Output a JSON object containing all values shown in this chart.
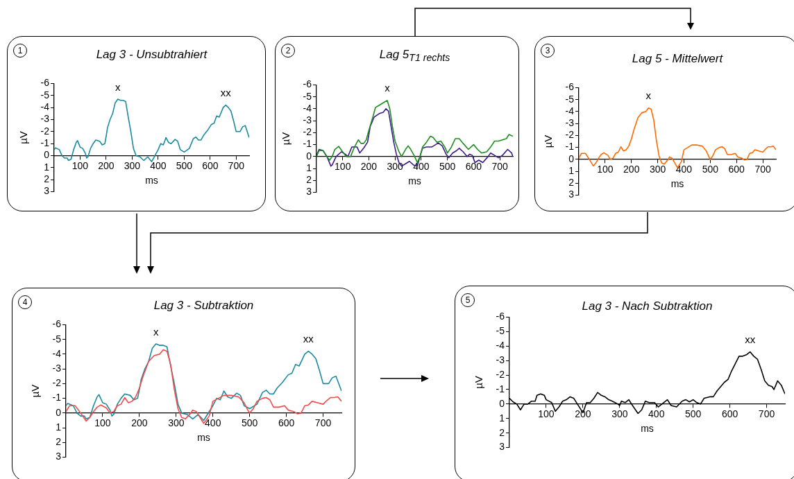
{
  "chart_data": [
    {
      "type": "line",
      "title": "Lag 3 - Unsubtrahiert",
      "xlabel": "ms",
      "ylabel": "µV",
      "xlim": [
        0,
        750
      ],
      "xticks": [
        100,
        200,
        300,
        400,
        500,
        600,
        700
      ],
      "ylim": [
        3,
        -6
      ],
      "yticks": [
        -6,
        -5,
        -4,
        -3,
        -2,
        -1,
        0,
        1,
        2,
        3
      ],
      "annotations": [
        "1",
        {
          "text": "x",
          "x": 245,
          "y": -4.7
        },
        {
          "text": "xx",
          "x": 660,
          "y": -4.2
        }
      ],
      "series": [
        {
          "color": "#1a8a9e",
          "x": [
            0,
            5,
            20,
            30,
            40,
            50,
            55,
            65,
            75,
            85,
            90,
            100,
            110,
            120,
            125,
            130,
            140,
            150,
            160,
            175,
            185,
            195,
            200,
            205,
            215,
            225,
            235,
            245,
            255,
            265,
            275,
            285,
            295,
            305,
            315,
            330,
            345,
            360,
            375,
            385,
            400,
            410,
            420,
            430,
            440,
            450,
            465,
            475,
            485,
            500,
            520,
            535,
            545,
            555,
            565,
            575,
            590,
            605,
            615,
            625,
            635,
            650,
            660,
            670,
            680,
            690,
            700,
            715,
            725,
            735,
            750
          ],
          "values": [
            -0.5,
            -0.65,
            -0.5,
            0,
            0.2,
            0.2,
            0.4,
            0.3,
            -0.5,
            -1.1,
            -1.25,
            -0.7,
            -0.6,
            -0.2,
            0.2,
            0.1,
            -0.6,
            -1.0,
            -1.3,
            -1.2,
            -0.9,
            -1.0,
            -1.6,
            -2.3,
            -3.0,
            -3.5,
            -4.4,
            -4.7,
            -4.6,
            -4.6,
            -4.5,
            -3.2,
            -2.0,
            -0.6,
            0,
            0.1,
            0.4,
            0.1,
            0.5,
            0.1,
            -0.5,
            -1.0,
            -0.9,
            -1.5,
            -1.1,
            -1.0,
            -1.35,
            -1.2,
            -0.5,
            -0.3,
            -0.6,
            -1.4,
            -1.55,
            -1.3,
            -1.3,
            -1.7,
            -2.1,
            -2.6,
            -2.7,
            -3.3,
            -3.2,
            -4.0,
            -4.2,
            -4.0,
            -3.7,
            -2.9,
            -2.0,
            -2.0,
            -2.4,
            -2.5,
            -1.5
          ]
        }
      ]
    },
    {
      "type": "line",
      "title": "Lag 5$_{T1 rechts}$",
      "xlabel": "ms",
      "ylabel": "µV",
      "xlim": [
        0,
        750
      ],
      "xticks": [
        100,
        200,
        300,
        400,
        500,
        600,
        700
      ],
      "ylim": [
        3,
        -6
      ],
      "yticks": [
        -6,
        -5,
        -4,
        -3,
        -2,
        -1,
        0,
        1,
        2,
        3
      ],
      "annotations": [
        "2",
        {
          "text": "x",
          "x": 270,
          "y": -4.7
        }
      ],
      "series": [
        {
          "color": "#1e8c1e",
          "x": [
            0,
            10,
            25,
            40,
            50,
            60,
            70,
            85,
            100,
            110,
            115,
            130,
            145,
            160,
            170,
            180,
            190,
            200,
            215,
            225,
            240,
            255,
            270,
            280,
            290,
            300,
            315,
            325,
            340,
            350,
            360,
            375,
            385,
            395,
            405,
            420,
            435,
            445,
            460,
            475,
            490,
            500,
            515,
            530,
            545,
            560,
            580,
            600,
            615,
            630,
            650,
            665,
            680,
            695,
            710,
            725,
            735,
            750
          ],
          "values": [
            0,
            -0.5,
            -0.5,
            0,
            0.3,
            0,
            -0.6,
            -0.85,
            -0.4,
            -0.1,
            0,
            0,
            -0.8,
            -1.4,
            -1.1,
            -1.1,
            -1.4,
            -2.2,
            -3.3,
            -4.1,
            -4.3,
            -4.5,
            -4.7,
            -4.0,
            -2.5,
            -1.3,
            -0.4,
            0,
            -0.6,
            -0.9,
            -0.6,
            0,
            0.5,
            0,
            -0.8,
            -1.2,
            -1.7,
            -1.6,
            -1.2,
            -1.3,
            -0.8,
            -0.3,
            -0.8,
            -1.5,
            -1.5,
            -1.1,
            -0.6,
            -1.0,
            -0.6,
            -0.3,
            -0.4,
            -0.8,
            -1.3,
            -1.3,
            -1.4,
            -1.5,
            -1.85,
            -1.7
          ]
        },
        {
          "color": "#3a1a8c",
          "x": [
            0,
            10,
            25,
            40,
            55,
            60,
            75,
            95,
            110,
            120,
            135,
            155,
            165,
            180,
            195,
            205,
            220,
            240,
            255,
            265,
            275,
            285,
            295,
            305,
            315,
            325,
            340,
            355,
            370,
            385,
            395,
            405,
            420,
            440,
            455,
            465,
            480,
            495,
            505,
            520,
            535,
            545,
            560,
            575,
            585,
            595,
            605,
            620,
            635,
            655,
            665,
            680,
            695,
            710,
            730,
            745,
            750
          ],
          "values": [
            -0.1,
            -0.6,
            -0.5,
            0,
            0.8,
            0.7,
            0,
            -0.4,
            -0.2,
            0,
            -0.8,
            -0.8,
            -0.3,
            -0.7,
            -1.2,
            -2.5,
            -3.3,
            -3.6,
            -3.7,
            -4.0,
            -3.8,
            -2.5,
            -1.2,
            -0.2,
            0.5,
            0.8,
            0.6,
            0.4,
            0.7,
            0.8,
            0,
            -0.7,
            -0.8,
            -0.8,
            -1.0,
            -1.15,
            -0.9,
            -0.2,
            0.1,
            -0.3,
            -0.5,
            -0.7,
            -0.4,
            0,
            -0.2,
            -0.1,
            0.5,
            0.3,
            0.5,
            0,
            -0.3,
            -0.1,
            0.1,
            -0.1,
            -0.6,
            -0.3,
            0
          ]
        }
      ]
    },
    {
      "type": "line",
      "title": "Lag 5 - Mittelwert",
      "xlabel": "ms",
      "ylabel": "µV",
      "xlim": [
        0,
        750
      ],
      "xticks": [
        100,
        200,
        300,
        400,
        500,
        600,
        700
      ],
      "ylim": [
        3,
        -6
      ],
      "yticks": [
        -6,
        -5,
        -4,
        -3,
        -2,
        -1,
        0,
        1,
        2,
        3
      ],
      "annotations": [
        "3",
        {
          "text": "x",
          "x": 265,
          "y": -4.3
        }
      ],
      "series": [
        {
          "color": "#ff6a00",
          "x": [
            0,
            10,
            25,
            40,
            55,
            65,
            75,
            85,
            95,
            110,
            120,
            130,
            140,
            150,
            160,
            170,
            180,
            190,
            200,
            210,
            225,
            240,
            255,
            265,
            275,
            285,
            295,
            305,
            315,
            325,
            340,
            345,
            355,
            365,
            375,
            390,
            400,
            415,
            430,
            450,
            470,
            485,
            495,
            500,
            510,
            520,
            535,
            545,
            555,
            565,
            580,
            595,
            605,
            620,
            630,
            640,
            650,
            660,
            670,
            685,
            700,
            710,
            720,
            730,
            740,
            750
          ],
          "values": [
            -0.1,
            -0.5,
            -0.5,
            0,
            0.55,
            0.3,
            -0.1,
            -0.4,
            -0.55,
            -0.35,
            0,
            -0.1,
            -0.5,
            -0.6,
            -1.05,
            -0.7,
            -0.8,
            -1.1,
            -1.7,
            -2.5,
            -3.5,
            -3.9,
            -4.0,
            -4.3,
            -4.2,
            -3.3,
            -1.6,
            -0.3,
            0.3,
            0.4,
            0,
            -0.2,
            -0.1,
            0.3,
            0.7,
            0.2,
            -0.8,
            -1.0,
            -1.2,
            -1.2,
            -1.1,
            -0.7,
            -0.2,
            0,
            -0.3,
            -0.8,
            -1.0,
            -1.05,
            -0.9,
            -0.4,
            -0.4,
            -0.5,
            -0.2,
            -0.1,
            0.05,
            0,
            -0.5,
            -0.55,
            -0.8,
            -0.7,
            -0.6,
            -0.85,
            -1.05,
            -1.05,
            -1.1,
            -0.8
          ]
        }
      ]
    },
    {
      "type": "line",
      "title": "Lag 3 - Subtraktion",
      "xlabel": "ms",
      "ylabel": "µV",
      "xlim": [
        0,
        750
      ],
      "xticks": [
        100,
        200,
        300,
        400,
        500,
        600,
        700
      ],
      "ylim": [
        3,
        -6
      ],
      "yticks": [
        -6,
        -5,
        -4,
        -3,
        -2,
        -1,
        0,
        1,
        2,
        3
      ],
      "annotations": [
        "4",
        {
          "text": "x",
          "x": 245,
          "y": -4.7
        },
        {
          "text": "xx",
          "x": 660,
          "y": -4.2
        }
      ],
      "series": [
        {
          "color": "#f44a4a",
          "x": [
            0,
            10,
            25,
            40,
            55,
            65,
            75,
            85,
            95,
            110,
            120,
            130,
            140,
            150,
            160,
            170,
            180,
            190,
            200,
            210,
            225,
            240,
            255,
            265,
            275,
            285,
            295,
            305,
            315,
            325,
            340,
            345,
            355,
            365,
            375,
            390,
            400,
            415,
            430,
            450,
            470,
            485,
            495,
            500,
            510,
            520,
            535,
            545,
            555,
            565,
            580,
            595,
            605,
            620,
            630,
            640,
            650,
            660,
            670,
            685,
            700,
            710,
            720,
            730,
            740,
            750
          ],
          "values": [
            -0.1,
            -0.5,
            -0.5,
            0,
            0.55,
            0.3,
            -0.1,
            -0.4,
            -0.55,
            -0.35,
            0,
            -0.1,
            -0.5,
            -0.6,
            -1.05,
            -0.7,
            -0.8,
            -1.1,
            -1.7,
            -2.5,
            -3.5,
            -3.9,
            -4.0,
            -4.3,
            -4.2,
            -3.3,
            -1.6,
            -0.3,
            0.3,
            0.4,
            0,
            -0.2,
            -0.1,
            0.3,
            0.7,
            0.2,
            -0.8,
            -1.0,
            -1.2,
            -1.2,
            -1.1,
            -0.7,
            -0.2,
            0,
            -0.3,
            -0.8,
            -1.0,
            -1.05,
            -0.9,
            -0.4,
            -0.4,
            -0.5,
            -0.2,
            -0.1,
            0.05,
            0,
            -0.5,
            -0.55,
            -0.8,
            -0.7,
            -0.6,
            -0.85,
            -1.05,
            -1.05,
            -1.1,
            -0.8
          ]
        },
        {
          "color": "#1a8a9e",
          "x": [
            0,
            5,
            20,
            30,
            40,
            50,
            55,
            65,
            75,
            85,
            90,
            100,
            110,
            120,
            125,
            130,
            140,
            150,
            160,
            175,
            185,
            195,
            200,
            205,
            215,
            225,
            235,
            245,
            255,
            265,
            275,
            285,
            295,
            305,
            315,
            330,
            345,
            360,
            375,
            385,
            400,
            410,
            420,
            430,
            440,
            450,
            465,
            475,
            485,
            500,
            520,
            535,
            545,
            555,
            565,
            575,
            590,
            605,
            615,
            625,
            635,
            650,
            660,
            670,
            680,
            690,
            700,
            715,
            725,
            735,
            750
          ],
          "values": [
            -0.5,
            -0.65,
            -0.5,
            0,
            0.2,
            0.2,
            0.4,
            0.3,
            -0.5,
            -1.1,
            -1.25,
            -0.7,
            -0.6,
            -0.2,
            0.2,
            0.1,
            -0.6,
            -1.0,
            -1.3,
            -1.2,
            -0.9,
            -1.0,
            -1.6,
            -2.3,
            -3.0,
            -3.5,
            -4.4,
            -4.7,
            -4.6,
            -4.6,
            -4.5,
            -3.2,
            -2.0,
            -0.6,
            0,
            0.1,
            0.4,
            0.1,
            0.5,
            0.1,
            -0.5,
            -1.0,
            -0.9,
            -1.5,
            -1.1,
            -1.0,
            -1.35,
            -1.2,
            -0.5,
            -0.3,
            -0.6,
            -1.4,
            -1.55,
            -1.3,
            -1.3,
            -1.7,
            -2.1,
            -2.6,
            -2.7,
            -3.3,
            -3.2,
            -4.0,
            -4.2,
            -4.0,
            -3.7,
            -2.9,
            -2.0,
            -2.0,
            -2.4,
            -2.5,
            -1.5
          ]
        }
      ]
    },
    {
      "type": "line",
      "title": "Lag 3 - Nach Subtraktion",
      "xlabel": "ms",
      "ylabel": "µV",
      "xlim": [
        0,
        750
      ],
      "xticks": [
        100,
        200,
        300,
        400,
        500,
        600,
        700
      ],
      "ylim": [
        3,
        -6
      ],
      "yticks": [
        -6,
        -5,
        -4,
        -3,
        -2,
        -1,
        0,
        1,
        2,
        3
      ],
      "annotations": [
        "5",
        {
          "text": "xx",
          "x": 655,
          "y": -3.6
        }
      ],
      "series": [
        {
          "color": "#000000",
          "x": [
            0,
            10,
            20,
            30,
            40,
            50,
            60,
            70,
            75,
            85,
            95,
            100,
            115,
            125,
            135,
            145,
            155,
            165,
            175,
            185,
            200,
            210,
            220,
            230,
            240,
            250,
            260,
            270,
            280,
            295,
            300,
            305,
            315,
            325,
            335,
            350,
            360,
            370,
            380,
            395,
            405,
            415,
            430,
            440,
            455,
            470,
            480,
            490,
            500,
            510,
            520,
            530,
            545,
            555,
            565,
            575,
            585,
            595,
            605,
            615,
            625,
            635,
            645,
            655,
            665,
            675,
            685,
            695,
            705,
            715,
            720,
            730,
            740,
            750
          ],
          "values": [
            -0.4,
            -0.15,
            0,
            0.4,
            0,
            0,
            -0.2,
            -0.2,
            -0.6,
            -0.7,
            -0.6,
            -0.3,
            -0.1,
            0.5,
            0.2,
            -0.2,
            -0.3,
            -0.5,
            -0.4,
            0,
            0.6,
            -0.1,
            -0.1,
            -0.4,
            -0.8,
            -0.6,
            -0.5,
            -0.3,
            -0.2,
            0,
            0.1,
            -0.2,
            -0.1,
            -0.3,
            0.1,
            0.65,
            0.4,
            -0.2,
            -0.1,
            -0.1,
            0.2,
            0,
            -0.3,
            0.1,
            0.2,
            -0.2,
            -0.3,
            -0.15,
            -0.3,
            -0.1,
            0,
            -0.4,
            -0.5,
            -0.5,
            -0.9,
            -1.2,
            -1.5,
            -1.7,
            -2.3,
            -2.8,
            -3.3,
            -3.3,
            -3.4,
            -3.6,
            -3.3,
            -3.1,
            -2.4,
            -1.6,
            -1.3,
            -1.2,
            -1.0,
            -1.6,
            -1.3,
            -0.7
          ]
        }
      ]
    }
  ]
}
